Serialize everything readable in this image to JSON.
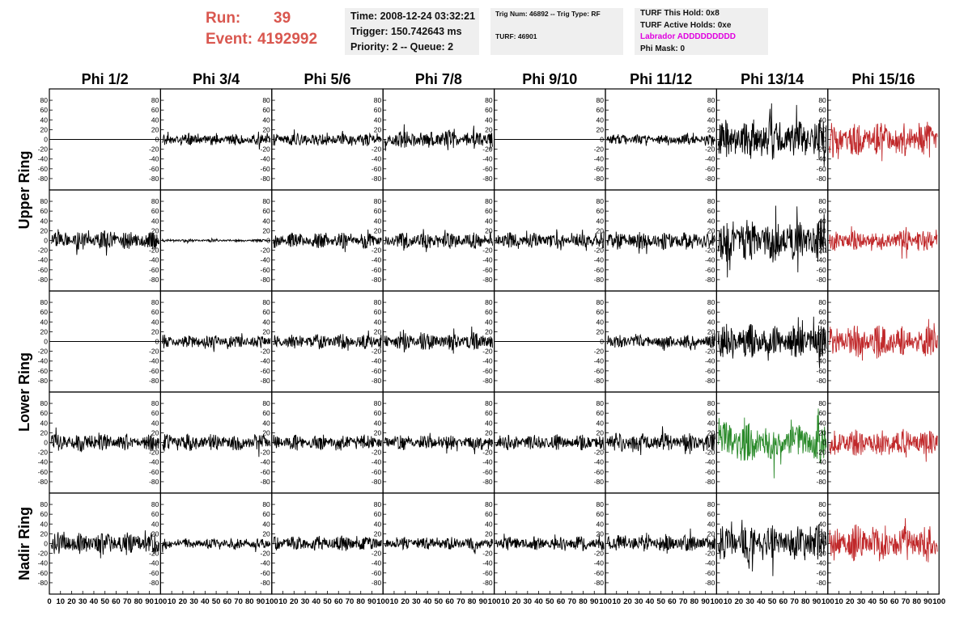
{
  "header": {
    "run_label": "Run:",
    "run_value": "39",
    "event_label": "Event:",
    "event_value": "4192992"
  },
  "info_box": {
    "time": "Time: 2008-12-24 03:32:21",
    "trigger": "Trigger: 150.742643 ms",
    "priority": "Priority: 2 -- Queue: 2"
  },
  "trig_box": {
    "trig": "Trig Num: 46892 -- Trig Type: RF",
    "turf": "TURF: 46901"
  },
  "turf_box": {
    "this_hold": "TURF This Hold: 0x8",
    "active_holds": "TURF Active Holds: 0xe",
    "labrador": "Labrador ADDDDDDDDD",
    "phi_mask": "Phi Mask: 0"
  },
  "colors": {
    "run_text": "#d9574f",
    "labrador_text": "#e000e0",
    "trace_default": "#000000",
    "trace_red": "#c0282a",
    "trace_green": "#2a8a2a",
    "info_bg": "#efefef"
  },
  "chart_data": {
    "type": "line",
    "columns": [
      "Phi 1/2",
      "Phi 3/4",
      "Phi 5/6",
      "Phi 7/8",
      "Phi 9/10",
      "Phi 11/12",
      "Phi 13/14",
      "Phi 15/16"
    ],
    "row_labels": [
      "Upper Ring",
      "Lower Ring",
      "Nadir Ring"
    ],
    "ylim": [
      -90,
      90
    ],
    "y_ticks": [
      "80",
      "60",
      "40",
      "20",
      "0",
      "-20",
      "-40",
      "-60",
      "-80"
    ],
    "xlim": [
      0,
      100
    ],
    "x_ticks_first": [
      "0",
      "10",
      "20",
      "30",
      "40",
      "50",
      "60",
      "70",
      "80",
      "90",
      "100"
    ],
    "x_ticks_rest": [
      "10",
      "20",
      "30",
      "40",
      "50",
      "60",
      "70",
      "80",
      "90",
      "100"
    ],
    "panels": [
      [
        {
          "amp": 0,
          "color": "black"
        },
        {
          "amp": 9,
          "color": "black"
        },
        {
          "amp": 10,
          "color": "black"
        },
        {
          "amp": 14,
          "color": "black"
        },
        {
          "amp": 0,
          "color": "black"
        },
        {
          "amp": 8,
          "color": "black"
        },
        {
          "amp": 30,
          "color": "black"
        },
        {
          "amp": 26,
          "color": "red"
        }
      ],
      [
        {
          "amp": 14,
          "color": "black"
        },
        {
          "amp": 2,
          "color": "black"
        },
        {
          "amp": 12,
          "color": "black"
        },
        {
          "amp": 13,
          "color": "black"
        },
        {
          "amp": 12,
          "color": "black"
        },
        {
          "amp": 14,
          "color": "black"
        },
        {
          "amp": 33,
          "color": "black"
        },
        {
          "amp": 16,
          "color": "red"
        }
      ],
      [
        {
          "amp": 0,
          "color": "black"
        },
        {
          "amp": 10,
          "color": "black"
        },
        {
          "amp": 11,
          "color": "black"
        },
        {
          "amp": 13,
          "color": "black"
        },
        {
          "amp": 0,
          "color": "black"
        },
        {
          "amp": 10,
          "color": "black"
        },
        {
          "amp": 27,
          "color": "black"
        },
        {
          "amp": 24,
          "color": "red"
        }
      ],
      [
        {
          "amp": 13,
          "color": "black"
        },
        {
          "amp": 13,
          "color": "black"
        },
        {
          "amp": 12,
          "color": "black"
        },
        {
          "amp": 11,
          "color": "black"
        },
        {
          "amp": 12,
          "color": "black"
        },
        {
          "amp": 14,
          "color": "black"
        },
        {
          "amp": 30,
          "color": "green"
        },
        {
          "amp": 20,
          "color": "red"
        }
      ],
      [
        {
          "amp": 17,
          "color": "black"
        },
        {
          "amp": 8,
          "color": "black"
        },
        {
          "amp": 12,
          "color": "black"
        },
        {
          "amp": 10,
          "color": "black"
        },
        {
          "amp": 11,
          "color": "black"
        },
        {
          "amp": 13,
          "color": "black"
        },
        {
          "amp": 28,
          "color": "black"
        },
        {
          "amp": 28,
          "color": "red"
        }
      ]
    ]
  }
}
